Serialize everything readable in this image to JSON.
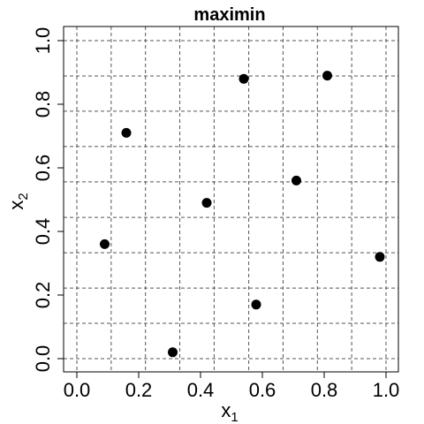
{
  "chart_data": {
    "type": "scatter",
    "title": "maximin",
    "xlabel": "x",
    "xlabel_sub": "1",
    "ylabel": "x",
    "ylabel_sub": "2",
    "xlim": [
      0,
      1
    ],
    "ylim": [
      0,
      1
    ],
    "xticks": [
      0.0,
      0.2,
      0.4,
      0.6,
      0.8,
      1.0
    ],
    "xtick_labels": [
      "0.0",
      "0.2",
      "0.4",
      "0.6",
      "0.8",
      "1.0"
    ],
    "yticks": [
      0.0,
      0.2,
      0.4,
      0.6,
      0.8,
      1.0
    ],
    "ytick_labels": [
      "0.0",
      "0.2",
      "0.4",
      "0.6",
      "0.8",
      "1.0"
    ],
    "grid": true,
    "grid_x": [
      0.0,
      0.111,
      0.222,
      0.333,
      0.444,
      0.556,
      0.667,
      0.778,
      0.889,
      1.0
    ],
    "grid_y": [
      0.0,
      0.111,
      0.222,
      0.333,
      0.444,
      0.556,
      0.667,
      0.778,
      0.889,
      1.0
    ],
    "points": [
      {
        "x": 0.09,
        "y": 0.36
      },
      {
        "x": 0.16,
        "y": 0.71
      },
      {
        "x": 0.31,
        "y": 0.02
      },
      {
        "x": 0.42,
        "y": 0.49
      },
      {
        "x": 0.54,
        "y": 0.88
      },
      {
        "x": 0.58,
        "y": 0.17
      },
      {
        "x": 0.71,
        "y": 0.56
      },
      {
        "x": 0.81,
        "y": 0.89
      },
      {
        "x": 0.98,
        "y": 0.32
      }
    ]
  }
}
